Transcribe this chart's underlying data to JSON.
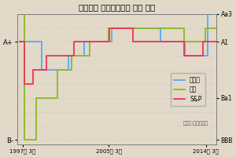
{
  "title": "우리나라 국가신용등급 변화 추이",
  "bg_color": "#e2d9c8",
  "plot_bg_color": "#e2d9c8",
  "xlabel_ticks": [
    1997.25,
    2005.25,
    2014.25
  ],
  "xlabel_labels": [
    "1997년 3월",
    "2005년 3월",
    "2014년 3월"
  ],
  "ylim": [
    -0.3,
    9.0
  ],
  "xlim": [
    1996.8,
    2015.2
  ],
  "left_yticks": [
    0,
    7
  ],
  "left_yticklabels": [
    "B-",
    "A+"
  ],
  "right_yticks": [
    0,
    3,
    7,
    9
  ],
  "right_yticklabels": [
    "BBB",
    "Ba1",
    "A1",
    "Aa3"
  ],
  "grid_y": [
    0,
    1,
    2,
    3,
    4,
    5,
    6,
    7,
    8,
    9
  ],
  "moody_color": "#55aaff",
  "fitch_color": "#88bb22",
  "sp_color": "#ee3355",
  "legend_labels": [
    "무디스",
    "피치",
    "S&P"
  ],
  "source_text": "〈자료:블룸버그〉",
  "moody_x": [
    1997.0,
    1999.0,
    1999.0,
    2001.5,
    2001.5,
    2003.0,
    2003.0,
    2005.5,
    2005.5,
    2010.0,
    2010.0,
    2012.3,
    2012.3,
    2014.4,
    2014.4,
    2015.2
  ],
  "moody_y": [
    7,
    7,
    5,
    5,
    6,
    6,
    7,
    7,
    8,
    8,
    7,
    7,
    6,
    6,
    9,
    9
  ],
  "fitch_x": [
    1997.0,
    1997.4,
    1997.4,
    1998.5,
    1998.5,
    2000.5,
    2000.5,
    2001.8,
    2001.8,
    2003.5,
    2003.5,
    2005.2,
    2005.2,
    2012.2,
    2012.2,
    2014.2,
    2014.2,
    2015.2
  ],
  "fitch_y": [
    9,
    9,
    0,
    0,
    3,
    3,
    5,
    5,
    6,
    6,
    7,
    7,
    8,
    8,
    7,
    7,
    8,
    8
  ],
  "sp_x": [
    1997.0,
    1997.4,
    1997.4,
    1998.2,
    1998.2,
    1999.5,
    1999.5,
    2002.0,
    2002.0,
    2005.3,
    2005.3,
    2007.5,
    2007.5,
    2012.2,
    2012.2,
    2014.0,
    2014.0,
    2015.2
  ],
  "sp_y": [
    7,
    7,
    4,
    4,
    5,
    5,
    6,
    6,
    7,
    7,
    8,
    8,
    7,
    7,
    6,
    6,
    7,
    7
  ]
}
